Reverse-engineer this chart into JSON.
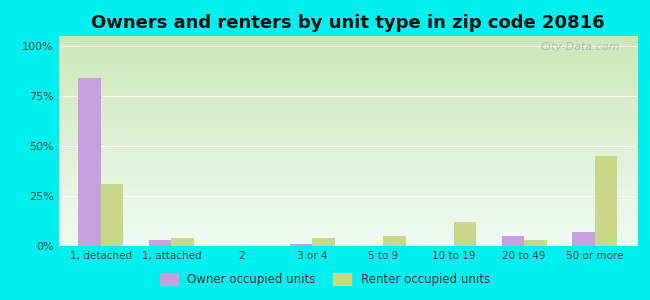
{
  "title": "Owners and renters by unit type in zip code 20816",
  "categories": [
    "1, detached",
    "1, attached",
    "2",
    "3 or 4",
    "5 to 9",
    "10 to 19",
    "20 to 49",
    "50 or more"
  ],
  "owner_values": [
    84,
    3,
    0,
    1,
    0,
    0,
    5,
    7
  ],
  "renter_values": [
    31,
    4,
    0,
    4,
    5,
    12,
    3,
    45
  ],
  "owner_color": "#c8a0e0",
  "renter_color": "#c8d888",
  "background_color": "#00f0f0",
  "plot_bg_top_left": "#e8f5e0",
  "plot_bg_top_right": "#f8fffc",
  "plot_bg_bottom": "#d0e8c0",
  "ylabel_ticks": [
    "0%",
    "25%",
    "50%",
    "75%",
    "100%"
  ],
  "ytick_values": [
    0,
    25,
    50,
    75,
    100
  ],
  "ylim": [
    0,
    105
  ],
  "legend_owner": "Owner occupied units",
  "legend_renter": "Renter occupied units",
  "bar_width": 0.32,
  "title_fontsize": 13,
  "watermark": "City-Data.com"
}
